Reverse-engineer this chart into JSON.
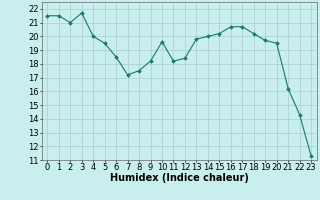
{
  "x": [
    0,
    1,
    2,
    3,
    4,
    5,
    6,
    7,
    8,
    9,
    10,
    11,
    12,
    13,
    14,
    15,
    16,
    17,
    18,
    19,
    20,
    21,
    22,
    23
  ],
  "y": [
    21.5,
    21.5,
    21.0,
    21.7,
    20.0,
    19.5,
    18.5,
    17.2,
    17.5,
    18.2,
    19.6,
    18.2,
    18.4,
    19.8,
    20.0,
    20.2,
    20.7,
    20.7,
    20.2,
    19.7,
    19.5,
    16.2,
    14.3,
    11.3
  ],
  "line_color": "#1a7a6a",
  "marker": "D",
  "marker_size": 2,
  "bg_color": "#c8eeee",
  "grid_color": "#aacccc",
  "xlabel": "Humidex (Indice chaleur)",
  "xlabel_fontsize": 7,
  "tick_fontsize": 6,
  "ylim": [
    11,
    22.5
  ],
  "xlim": [
    -0.5,
    23.5
  ],
  "yticks": [
    11,
    12,
    13,
    14,
    15,
    16,
    17,
    18,
    19,
    20,
    21,
    22
  ],
  "xticks": [
    0,
    1,
    2,
    3,
    4,
    5,
    6,
    7,
    8,
    9,
    10,
    11,
    12,
    13,
    14,
    15,
    16,
    17,
    18,
    19,
    20,
    21,
    22,
    23
  ]
}
